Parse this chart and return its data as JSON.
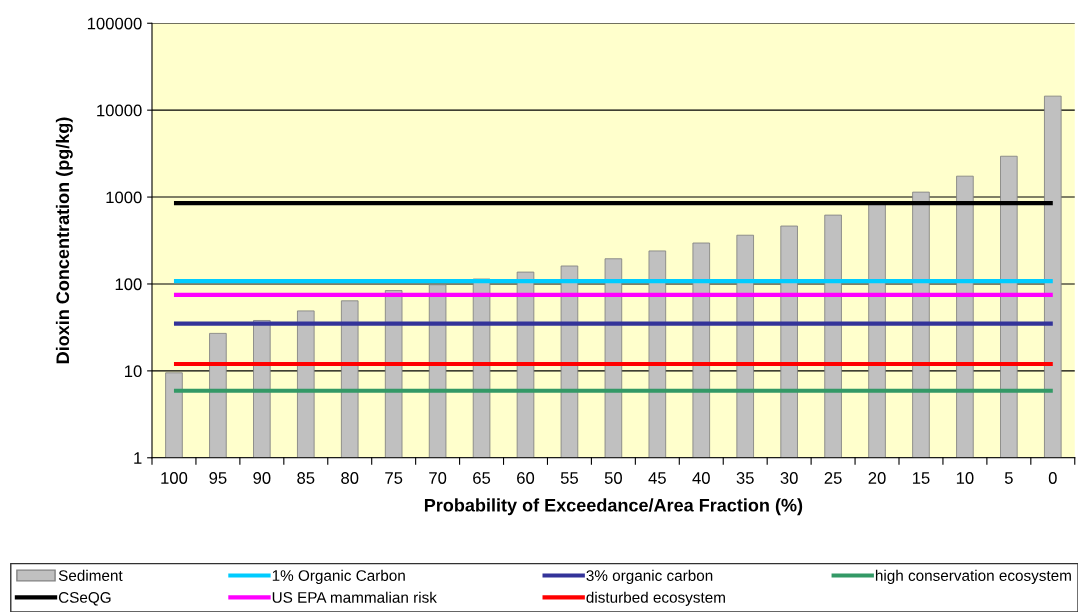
{
  "chart_data": {
    "type": "bar",
    "xlabel": "Probability of Exceedance/Area Fraction (%)",
    "ylabel": "Dioxin Concentration (pg/kg)",
    "categories": [
      "100",
      "95",
      "90",
      "85",
      "80",
      "75",
      "70",
      "65",
      "60",
      "55",
      "50",
      "45",
      "40",
      "35",
      "30",
      "25",
      "20",
      "15",
      "10",
      "5",
      "0"
    ],
    "series": [
      {
        "name": "Sediment",
        "color": "#c0c0c0",
        "values": [
          9.5,
          27,
          38,
          49,
          64,
          84,
          98,
          114,
          137,
          161,
          195,
          240,
          296,
          364,
          464,
          620,
          850,
          1140,
          1740,
          2950,
          14500
        ]
      }
    ],
    "ref_lines": [
      {
        "axis": "y",
        "value": 850,
        "label": "CSeQG",
        "color": "#000000"
      },
      {
        "axis": "y",
        "value": 108,
        "label": "1% Organic Carbon",
        "color": "#00ccff"
      },
      {
        "axis": "y",
        "value": 75,
        "label": "US EPA mammalian risk",
        "color": "#ff00ff"
      },
      {
        "axis": "y",
        "value": 35,
        "label": "3% organic carbon",
        "color": "#333399"
      },
      {
        "axis": "y",
        "value": 12,
        "label": "disturbed ecosystem",
        "color": "#ff0000"
      },
      {
        "axis": "y",
        "value": 5.9,
        "label": "high conservation ecosystem",
        "color": "#339966"
      }
    ],
    "log": true,
    "ylim": [
      1,
      100000
    ],
    "yticks": [
      1,
      10,
      100,
      1000,
      10000,
      100000
    ],
    "grid": "y",
    "legend": "bottom"
  }
}
